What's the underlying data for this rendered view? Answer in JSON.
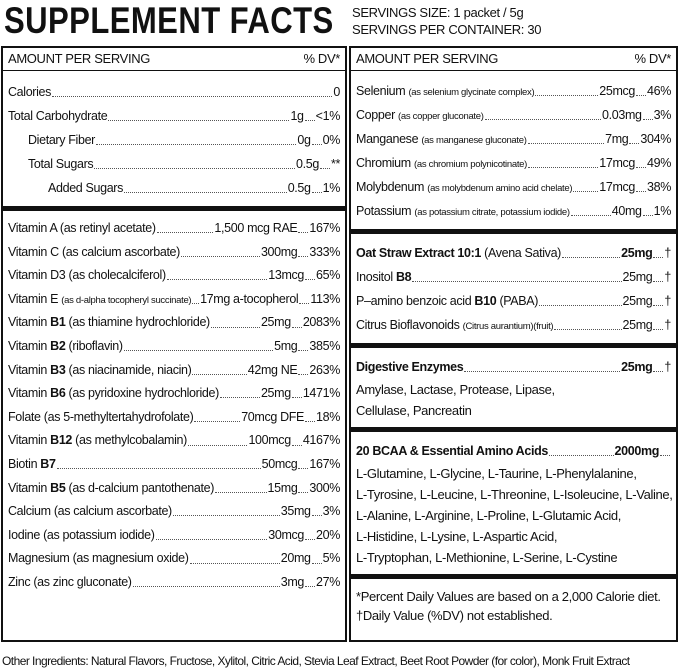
{
  "header": {
    "title": "SUPPLEMENT FACTS",
    "serving_size": "SERVINGS SIZE: 1 packet / 5g",
    "servings_per_container": "SERVINGS PER CONTAINER: 30"
  },
  "left": {
    "head": {
      "amount": "AMOUNT PER SERVING",
      "dv": "% DV*"
    },
    "sections": [
      {
        "rows": [
          {
            "name": "Calories",
            "amount": "0"
          },
          {
            "name": "Total Carbohydrate",
            "amount": "1g",
            "dv": "<1%",
            "sub": [
              {
                "name": "Dietary Fiber",
                "amount": "0g",
                "dv": "0%"
              },
              {
                "name": "Total Sugars",
                "amount": "0.5g",
                "dv": "**",
                "sub": [
                  {
                    "name": "Added Sugars",
                    "amount": "0.5g",
                    "dv": "1%"
                  }
                ]
              }
            ]
          }
        ]
      },
      {
        "rows": [
          {
            "name": "Vitamin A",
            "note": "(as retinyl acetate)",
            "amount": "1,500 mcg RAE",
            "dv": "167%"
          },
          {
            "name": "Vitamin C",
            "note": "(as calcium ascorbate)",
            "amount": "300mg",
            "dv": "333%"
          },
          {
            "name": "Vitamin D3",
            "note": "(as cholecalciferol)",
            "amount": "13mcg",
            "dv": "65%"
          },
          {
            "name": "Vitamin E",
            "note_small": "(as d-alpha tocopheryl succinate)",
            "amount": "17mg a-tocopherol",
            "dv": "113%"
          },
          {
            "name": "Vitamin",
            "bold": "B1",
            "note": "(as thiamine hydrochloride)",
            "amount": "25mg",
            "dv": "2083%"
          },
          {
            "name": "Vitamin",
            "bold": "B2",
            "note": "(riboflavin)",
            "amount": "5mg",
            "dv": "385%"
          },
          {
            "name": "Vitamin",
            "bold": "B3",
            "note": "(as niacinamide, niacin)",
            "amount": "42mg NE",
            "dv": "263%"
          },
          {
            "name": "Vitamin",
            "bold": "B6",
            "note": "(as pyridoxine hydrochloride)",
            "amount": "25mg",
            "dv": "1471%"
          },
          {
            "name": "Folate",
            "note": "(as 5-methyltertahydrofolate)",
            "amount": "70mcg DFE",
            "dv": "18%"
          },
          {
            "name": "Vitamin",
            "bold": "B12",
            "note": "(as methylcobalamin)",
            "amount": "100mcg",
            "dv": "4167%"
          },
          {
            "name": "Biotin",
            "bold": "B7",
            "amount": "50mcg",
            "dv": "167%"
          },
          {
            "name": "Vitamin",
            "bold": "B5",
            "note": "(as d-calcium pantothenate)",
            "amount": "15mg",
            "dv": "300%"
          },
          {
            "name": "Calcium",
            "note": "(as calcium ascorbate)",
            "amount": "35mg",
            "dv": "3%"
          },
          {
            "name": "Iodine",
            "note": "(as potassium iodide)",
            "amount": "30mcg",
            "dv": "20%"
          },
          {
            "name": "Magnesium",
            "note": "(as magnesium oxide)",
            "amount": "20mg",
            "dv": "5%"
          },
          {
            "name": "Zinc",
            "note": "(as zinc gluconate)",
            "amount": "3mg",
            "dv": "27%"
          }
        ]
      }
    ]
  },
  "right": {
    "head": {
      "amount": "AMOUNT PER SERVING",
      "dv": "% DV*"
    },
    "minerals": [
      {
        "name": "Selenium",
        "note_small": "(as selenium glycinate complex)",
        "amount": "25mcg",
        "dv": "46%"
      },
      {
        "name": "Copper",
        "note_small": "(as copper gluconate)",
        "amount": "0.03mg",
        "dv": "3%"
      },
      {
        "name": "Manganese",
        "note_small": "(as manganese gluconate)",
        "amount": "7mg",
        "dv": "304%"
      },
      {
        "name": "Chromium",
        "note_small": "(as chromium polynicotinate)",
        "amount": "17mcg",
        "dv": "49%"
      },
      {
        "name": "Molybdenum",
        "note_small": "(as molybdenum amino acid chelate)",
        "amount": "17mcg",
        "dv": "38%"
      },
      {
        "name": "Potassium",
        "note_small": "(as potassium citrate, potassium iodide)",
        "amount": "40mg",
        "dv": "1%"
      }
    ],
    "blends": [
      {
        "title": "Oat Straw Extract 10:1",
        "title_note": "(Avena Sativa)",
        "amount": "25mg",
        "dv": "†",
        "rows": [
          {
            "name": "Inositol",
            "bold": "B8",
            "amount": "25mg",
            "dv": "†"
          },
          {
            "name": "P–amino benzoic acid",
            "bold": "B10",
            "note": "(PABA)",
            "amount": "25mg",
            "dv": "†"
          },
          {
            "name": "Citrus Bioflavonoids",
            "note_small": "(Citrus aurantium)(fruit)",
            "amount": "25mg",
            "dv": "†"
          }
        ]
      },
      {
        "title": "Digestive Enzymes",
        "amount": "25mg",
        "dv": "†",
        "lines": [
          "Amylase, Lactase, Protease, Lipase,",
          "Cellulase, Pancreatin"
        ]
      },
      {
        "title": "20 BCAA & Essential Amino Acids",
        "amount": "2000mg",
        "lines": [
          "L-Glutamine, L-Glycine, L-Taurine, L-Phenylalanine,",
          "L-Tyrosine, L-Leucine, L-Threonine, L-Isoleucine,  L-Valine,",
          "L-Alanine, L-Arginine, L-Proline, L-Glutamic Acid,",
          "L-Histidine, L-Lysine, L-Aspartic Acid,",
          "L-Tryptophan, L-Methionine, L-Serine, L-Cystine"
        ]
      }
    ],
    "footnotes": [
      "*Percent Daily Values are based on a 2,000 Calorie diet.",
      "†Daily Value (%DV) not established."
    ]
  },
  "other_ingredients": "Other Ingredients: Natural Flavors, Fructose, Xylitol, Citric Acid, Stevia Leaf Extract, Beet Root Powder (for color), Monk Fruit Extract"
}
